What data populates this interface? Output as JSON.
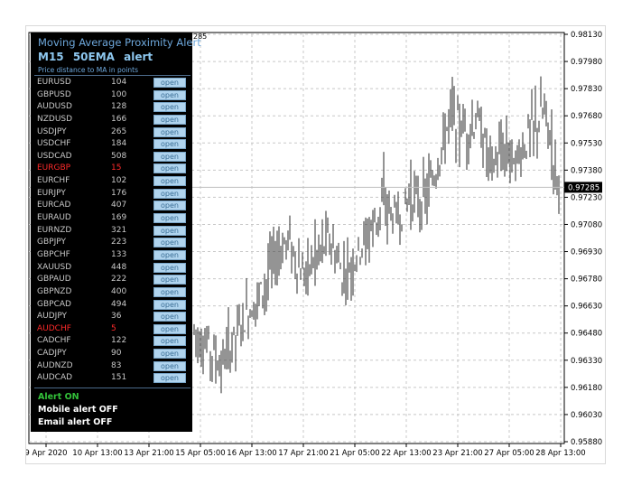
{
  "panel": {
    "title": "Moving Average Proximity Alert",
    "timeframe": "M15",
    "ma": "50EMA alert",
    "description": "Price distance to MA in points",
    "button_label": "open",
    "rows": [
      {
        "symbol": "EURUSD",
        "value": "104",
        "alert": false
      },
      {
        "symbol": "GBPUSD",
        "value": "100",
        "alert": false
      },
      {
        "symbol": "AUDUSD",
        "value": "128",
        "alert": false
      },
      {
        "symbol": "NZDUSD",
        "value": "166",
        "alert": false
      },
      {
        "symbol": "USDJPY",
        "value": "265",
        "alert": false
      },
      {
        "symbol": "USDCHF",
        "value": "184",
        "alert": false
      },
      {
        "symbol": "USDCAD",
        "value": "508",
        "alert": false
      },
      {
        "symbol": "EURGBP",
        "value": "15",
        "alert": true
      },
      {
        "symbol": "EURCHF",
        "value": "102",
        "alert": false
      },
      {
        "symbol": "EURJPY",
        "value": "176",
        "alert": false
      },
      {
        "symbol": "EURCAD",
        "value": "407",
        "alert": false
      },
      {
        "symbol": "EURAUD",
        "value": "169",
        "alert": false
      },
      {
        "symbol": "EURNZD",
        "value": "321",
        "alert": false
      },
      {
        "symbol": "GBPJPY",
        "value": "223",
        "alert": false
      },
      {
        "symbol": "GBPCHF",
        "value": "133",
        "alert": false
      },
      {
        "symbol": "XAUUSD",
        "value": "448",
        "alert": false
      },
      {
        "symbol": "GBPAUD",
        "value": "222",
        "alert": false
      },
      {
        "symbol": "GBPNZD",
        "value": "400",
        "alert": false
      },
      {
        "symbol": "GBPCAD",
        "value": "494",
        "alert": false
      },
      {
        "symbol": "AUDJPY",
        "value": "36",
        "alert": false
      },
      {
        "symbol": "AUDCHF",
        "value": "5",
        "alert": true
      },
      {
        "symbol": "CADCHF",
        "value": "122",
        "alert": false
      },
      {
        "symbol": "CADJPY",
        "value": "90",
        "alert": false
      },
      {
        "symbol": "AUDNZD",
        "value": "83",
        "alert": false
      },
      {
        "symbol": "AUDCAD",
        "value": "151",
        "alert": false
      }
    ],
    "alert_status": "Alert ON",
    "mobile_status": "Mobile alert OFF",
    "email_status": "Email alert OFF"
  },
  "chart": {
    "top_partial_label": "285",
    "current_price": "0.97285",
    "colors": {
      "bars": "#3c3c3c",
      "grid": "#c8c8c8",
      "price_line": "#c0c0c0",
      "price_tag": "#000000",
      "alert_red": "#ff2a2a",
      "alert_green": "#33c23a",
      "panel_bg": "#000000"
    }
  },
  "chart_data": {
    "type": "bar",
    "y_ticks": [
      "0.98130",
      "0.97980",
      "0.97830",
      "0.97680",
      "0.97530",
      "0.97380",
      "0.97230",
      "0.97080",
      "0.96930",
      "0.96780",
      "0.96630",
      "0.96480",
      "0.96330",
      "0.96180",
      "0.96030",
      "0.95880"
    ],
    "x_ticks": [
      "9 Apr 2020",
      "10 Apr 13:00",
      "13 Apr 21:00",
      "15 Apr 05:00",
      "16 Apr 13:00",
      "17 Apr 21:00",
      "21 Apr 05:00",
      "22 Apr 13:00",
      "23 Apr 21:00",
      "27 Apr 05:00",
      "28 Apr 13:00"
    ],
    "ylim": [
      0.9588,
      0.9813
    ],
    "current": 0.97285,
    "series": [
      {
        "values": [
          0.965,
          0.964,
          0.963,
          0.9645,
          0.966,
          0.967,
          0.969,
          0.97,
          0.968,
          0.969,
          0.97,
          0.968,
          0.969,
          0.9705,
          0.972,
          0.971,
          0.9725,
          0.972,
          0.974,
          0.977,
          0.976,
          0.9765,
          0.974,
          0.975,
          0.9745,
          0.976,
          0.977,
          0.973
        ]
      }
    ]
  }
}
